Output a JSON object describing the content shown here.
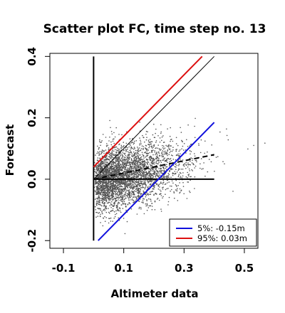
{
  "chart_data": {
    "type": "scatter",
    "title": "Scatter plot FC, time step no. 13",
    "xlabel": "Altimeter data",
    "ylabel": "Forecast",
    "xlim": [
      -0.145,
      0.545
    ],
    "ylim": [
      -0.225,
      0.41
    ],
    "xticks": [
      -0.1,
      0.1,
      0.3,
      0.5
    ],
    "xtick_labels": [
      "-0.1",
      "0.1",
      "0.3",
      "0.5"
    ],
    "yticks": [
      -0.2,
      0.0,
      0.2,
      0.4
    ],
    "ytick_labels": [
      "-0.2",
      "0.0",
      "0.2",
      "0.4"
    ],
    "legend_position": "bottom-right",
    "legend": [
      {
        "label": "5%: -0.15m",
        "color": "#1010dd"
      },
      {
        "label": "95%:  0.03m",
        "color": "#dd1010"
      }
    ],
    "lines": [
      {
        "name": "identity",
        "style": "solid",
        "color": "#000000",
        "points": [
          [
            0.0,
            0.0
          ],
          [
            0.4,
            0.4
          ]
        ]
      },
      {
        "name": "zero-forecast",
        "style": "solid",
        "color": "#000000",
        "points": [
          [
            0.0,
            0.0
          ],
          [
            0.4,
            0.0
          ]
        ]
      },
      {
        "name": "zero-altimeter",
        "style": "solid",
        "color": "#000000",
        "points": [
          [
            0.0,
            -0.2
          ],
          [
            0.0,
            0.4
          ]
        ]
      },
      {
        "name": "regression",
        "style": "dashed",
        "color": "#000000",
        "points": [
          [
            0.0,
            0.0
          ],
          [
            0.4,
            0.08
          ]
        ]
      },
      {
        "name": "95%",
        "style": "solid",
        "color": "#dd1010",
        "points": [
          [
            0.0,
            0.04
          ],
          [
            0.36,
            0.4
          ]
        ]
      },
      {
        "name": "5%",
        "style": "solid",
        "color": "#1010dd",
        "points": [
          [
            0.015,
            -0.2
          ],
          [
            0.4,
            0.185
          ]
        ]
      }
    ],
    "scatter": {
      "color": "#555555",
      "n_points": 3800,
      "x_range": [
        0.0,
        0.57
      ],
      "y_range": [
        -0.2,
        0.32
      ]
    }
  }
}
